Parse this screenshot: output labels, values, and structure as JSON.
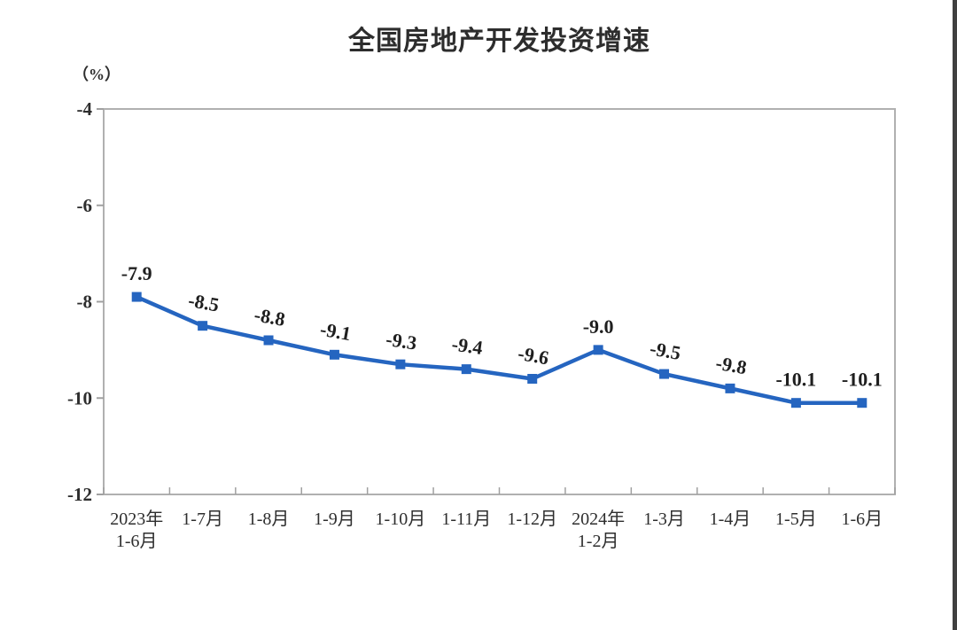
{
  "title": "全国房地产开发投资增速",
  "unit_label": "（%）",
  "colors": {
    "line": "#2565c0",
    "marker": "#2565c0",
    "data_label_text": "#1f1f1f",
    "axis_text": "#2e2e2e",
    "plot_border": "#b0b0b0",
    "tick": "#a0a0a0",
    "edge_strip": "#404040",
    "background": "#ffffff"
  },
  "chart_data": {
    "type": "line",
    "title": "全国房地产开发投资增速",
    "ylabel": "（%）",
    "xlabel": "",
    "categories": [
      [
        "2023年",
        "1-6月"
      ],
      [
        "1-7月"
      ],
      [
        "1-8月"
      ],
      [
        "1-9月"
      ],
      [
        "1-10月"
      ],
      [
        "1-11月"
      ],
      [
        "1-12月"
      ],
      [
        "2024年",
        "1-2月"
      ],
      [
        "1-3月"
      ],
      [
        "1-4月"
      ],
      [
        "1-5月"
      ],
      [
        "1-6月"
      ]
    ],
    "values": [
      -7.9,
      -8.5,
      -8.8,
      -9.1,
      -9.3,
      -9.4,
      -9.6,
      -9.0,
      -9.5,
      -9.8,
      -10.1,
      -10.1
    ],
    "data_labels": [
      "-7.9",
      "-8.5",
      "-8.8",
      "-9.1",
      "-9.3",
      "-9.4",
      "-9.6",
      "-9.0",
      "-9.5",
      "-9.8",
      "-10.1",
      "-10.1"
    ],
    "label_rotation": [
      0,
      10,
      10,
      10,
      8,
      8,
      10,
      0,
      10,
      10,
      0,
      0
    ],
    "ylim": [
      -12,
      -4
    ],
    "yticks": [
      -4,
      -6,
      -8,
      -10,
      -12
    ],
    "grid": false,
    "legend": "none",
    "marker": "square",
    "series_name": "全国房地产开发投资增速"
  }
}
